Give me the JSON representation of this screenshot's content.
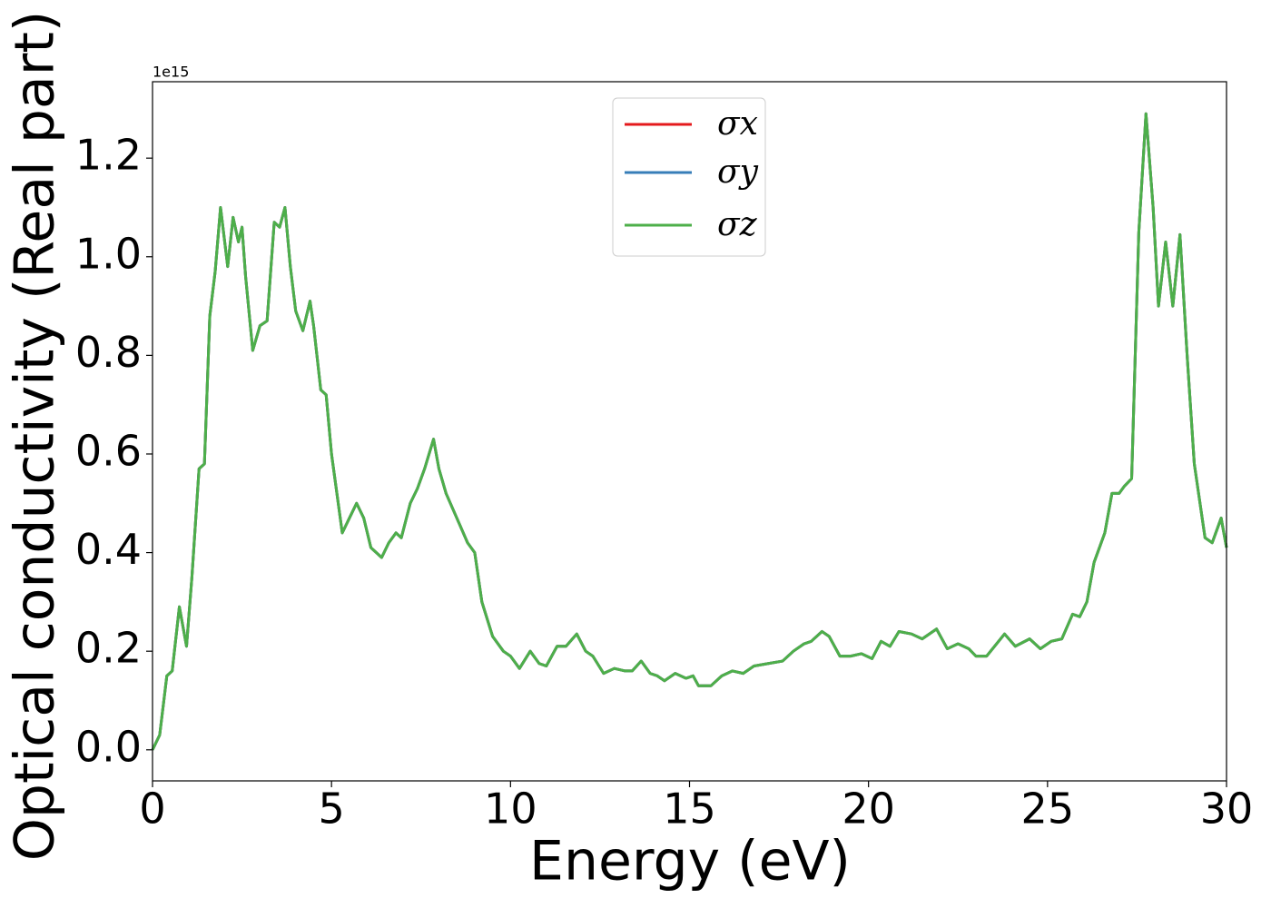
{
  "chart_data": {
    "type": "line",
    "x_label": "Energy (eV)",
    "y_label": "Optical conductivity (Real part)",
    "y_offset_label": "1e15",
    "x": [
      0,
      0.2,
      0.4,
      0.55,
      0.75,
      0.95,
      1.1,
      1.3,
      1.45,
      1.6,
      1.75,
      1.9,
      2.1,
      2.25,
      2.4,
      2.5,
      2.6,
      2.8,
      3.0,
      3.2,
      3.4,
      3.55,
      3.7,
      3.85,
      4.0,
      4.2,
      4.4,
      4.5,
      4.7,
      4.85,
      5.0,
      5.3,
      5.5,
      5.7,
      5.9,
      6.1,
      6.4,
      6.6,
      6.8,
      6.95,
      7.2,
      7.4,
      7.6,
      7.85,
      8.0,
      8.2,
      8.5,
      8.8,
      9.0,
      9.2,
      9.5,
      9.8,
      10.0,
      10.25,
      10.55,
      10.8,
      11.0,
      11.3,
      11.55,
      11.85,
      12.1,
      12.3,
      12.6,
      12.9,
      13.2,
      13.4,
      13.65,
      13.9,
      14.1,
      14.3,
      14.6,
      14.9,
      15.1,
      15.25,
      15.6,
      15.9,
      16.2,
      16.5,
      16.8,
      17.2,
      17.6,
      17.9,
      18.2,
      18.4,
      18.7,
      18.9,
      19.2,
      19.5,
      19.8,
      20.1,
      20.35,
      20.6,
      20.85,
      21.2,
      21.5,
      21.9,
      22.2,
      22.5,
      22.8,
      23.0,
      23.3,
      23.8,
      24.1,
      24.5,
      24.8,
      25.1,
      25.4,
      25.7,
      25.9,
      26.1,
      26.3,
      26.6,
      26.8,
      27.0,
      27.15,
      27.35,
      27.55,
      27.75,
      27.95,
      28.1,
      28.3,
      28.5,
      28.7,
      28.9,
      29.1,
      29.4,
      29.6,
      29.85,
      30.0
    ],
    "series": [
      {
        "name": "σx",
        "color": "#e41a1c",
        "values": [
          0,
          0.03,
          0.15,
          0.16,
          0.29,
          0.21,
          0.35,
          0.57,
          0.58,
          0.88,
          0.97,
          1.1,
          0.98,
          1.08,
          1.03,
          1.06,
          0.96,
          0.81,
          0.86,
          0.87,
          1.07,
          1.06,
          1.1,
          0.98,
          0.89,
          0.85,
          0.91,
          0.86,
          0.73,
          0.72,
          0.6,
          0.44,
          0.47,
          0.5,
          0.47,
          0.41,
          0.39,
          0.42,
          0.44,
          0.43,
          0.5,
          0.53,
          0.57,
          0.63,
          0.57,
          0.52,
          0.47,
          0.42,
          0.4,
          0.3,
          0.23,
          0.2,
          0.19,
          0.165,
          0.2,
          0.175,
          0.17,
          0.21,
          0.21,
          0.235,
          0.2,
          0.19,
          0.155,
          0.165,
          0.16,
          0.16,
          0.18,
          0.155,
          0.15,
          0.14,
          0.155,
          0.145,
          0.15,
          0.13,
          0.13,
          0.15,
          0.16,
          0.155,
          0.17,
          0.175,
          0.18,
          0.2,
          0.215,
          0.22,
          0.24,
          0.23,
          0.19,
          0.19,
          0.195,
          0.185,
          0.22,
          0.21,
          0.24,
          0.235,
          0.225,
          0.245,
          0.205,
          0.215,
          0.205,
          0.19,
          0.19,
          0.235,
          0.21,
          0.225,
          0.205,
          0.22,
          0.225,
          0.275,
          0.27,
          0.3,
          0.38,
          0.44,
          0.52,
          0.52,
          0.535,
          0.55,
          1.05,
          1.29,
          1.1,
          0.9,
          1.03,
          0.9,
          1.045,
          0.8,
          0.58,
          0.43,
          0.42,
          0.47,
          0.41
        ]
      },
      {
        "name": "σy",
        "color": "#377eb8",
        "values": [
          0,
          0.03,
          0.15,
          0.16,
          0.29,
          0.21,
          0.35,
          0.57,
          0.58,
          0.88,
          0.97,
          1.1,
          0.98,
          1.08,
          1.03,
          1.06,
          0.96,
          0.81,
          0.86,
          0.87,
          1.07,
          1.06,
          1.1,
          0.98,
          0.89,
          0.85,
          0.91,
          0.86,
          0.73,
          0.72,
          0.6,
          0.44,
          0.47,
          0.5,
          0.47,
          0.41,
          0.39,
          0.42,
          0.44,
          0.43,
          0.5,
          0.53,
          0.57,
          0.63,
          0.57,
          0.52,
          0.47,
          0.42,
          0.4,
          0.3,
          0.23,
          0.2,
          0.19,
          0.165,
          0.2,
          0.175,
          0.17,
          0.21,
          0.21,
          0.235,
          0.2,
          0.19,
          0.155,
          0.165,
          0.16,
          0.16,
          0.18,
          0.155,
          0.15,
          0.14,
          0.155,
          0.145,
          0.15,
          0.13,
          0.13,
          0.15,
          0.16,
          0.155,
          0.17,
          0.175,
          0.18,
          0.2,
          0.215,
          0.22,
          0.24,
          0.23,
          0.19,
          0.19,
          0.195,
          0.185,
          0.22,
          0.21,
          0.24,
          0.235,
          0.225,
          0.245,
          0.205,
          0.215,
          0.205,
          0.19,
          0.19,
          0.235,
          0.21,
          0.225,
          0.205,
          0.22,
          0.225,
          0.275,
          0.27,
          0.3,
          0.38,
          0.44,
          0.52,
          0.52,
          0.535,
          0.55,
          1.05,
          1.29,
          1.1,
          0.9,
          1.03,
          0.9,
          1.045,
          0.8,
          0.58,
          0.43,
          0.42,
          0.47,
          0.41
        ]
      },
      {
        "name": "σz",
        "color": "#4daf4a",
        "values": [
          0,
          0.03,
          0.15,
          0.16,
          0.29,
          0.21,
          0.35,
          0.57,
          0.58,
          0.88,
          0.97,
          1.1,
          0.98,
          1.08,
          1.03,
          1.06,
          0.96,
          0.81,
          0.86,
          0.87,
          1.07,
          1.06,
          1.1,
          0.98,
          0.89,
          0.85,
          0.91,
          0.86,
          0.73,
          0.72,
          0.6,
          0.44,
          0.47,
          0.5,
          0.47,
          0.41,
          0.39,
          0.42,
          0.44,
          0.43,
          0.5,
          0.53,
          0.57,
          0.63,
          0.57,
          0.52,
          0.47,
          0.42,
          0.4,
          0.3,
          0.23,
          0.2,
          0.19,
          0.165,
          0.2,
          0.175,
          0.17,
          0.21,
          0.21,
          0.235,
          0.2,
          0.19,
          0.155,
          0.165,
          0.16,
          0.16,
          0.18,
          0.155,
          0.15,
          0.14,
          0.155,
          0.145,
          0.15,
          0.13,
          0.13,
          0.15,
          0.16,
          0.155,
          0.17,
          0.175,
          0.18,
          0.2,
          0.215,
          0.22,
          0.24,
          0.23,
          0.19,
          0.19,
          0.195,
          0.185,
          0.22,
          0.21,
          0.24,
          0.235,
          0.225,
          0.245,
          0.205,
          0.215,
          0.205,
          0.19,
          0.19,
          0.235,
          0.21,
          0.225,
          0.205,
          0.22,
          0.225,
          0.275,
          0.27,
          0.3,
          0.38,
          0.44,
          0.52,
          0.52,
          0.535,
          0.55,
          1.05,
          1.29,
          1.1,
          0.9,
          1.03,
          0.9,
          1.045,
          0.8,
          0.58,
          0.43,
          0.42,
          0.47,
          0.41
        ]
      }
    ],
    "xlim": [
      0,
      30
    ],
    "xticks": [
      0,
      5,
      10,
      15,
      20,
      25,
      30
    ],
    "ylim": [
      -0.063,
      1.355
    ],
    "yticks": [
      {
        "value": 0,
        "label": "0.0"
      },
      {
        "value": 0.2,
        "label": "0.2"
      },
      {
        "value": 0.4,
        "label": "0.4"
      },
      {
        "value": 0.6,
        "label": "0.6"
      },
      {
        "value": 0.8,
        "label": "0.8"
      },
      {
        "value": 1.0,
        "label": "1.0"
      },
      {
        "value": 1.2,
        "label": "1.2"
      }
    ],
    "grid": false,
    "legend": "upper center"
  }
}
